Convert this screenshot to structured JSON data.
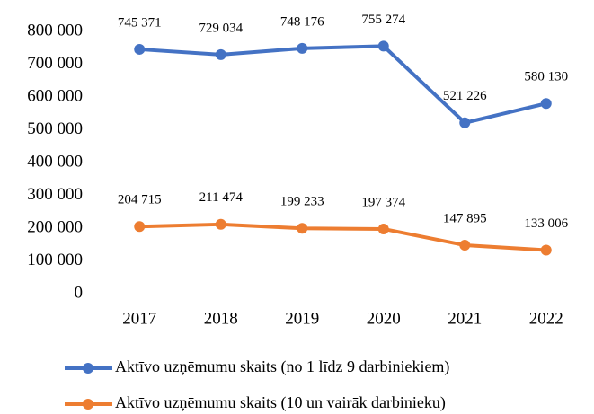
{
  "chart_data": {
    "type": "line",
    "categories": [
      "2017",
      "2018",
      "2019",
      "2020",
      "2021",
      "2022"
    ],
    "series": [
      {
        "name": "Aktīvo uzņēmumu skaits (no 1 līdz 9 darbiniekiem)",
        "color": "#4472c4",
        "values": [
          745371,
          729034,
          748176,
          755274,
          521226,
          580130
        ],
        "value_labels": [
          "745 371",
          "729 034",
          "748 176",
          "755 274",
          "521 226",
          "580 130"
        ]
      },
      {
        "name": "Aktīvo uzņēmumu skaits (10 un vairāk darbinieku)",
        "color": "#ed7d31",
        "values": [
          204715,
          211474,
          199233,
          197374,
          147895,
          133006
        ],
        "value_labels": [
          "204 715",
          "211 474",
          "199 233",
          "197 374",
          "147 895",
          "133 006"
        ]
      }
    ],
    "ylim": [
      0,
      800000
    ],
    "yticks": [
      0,
      {
        "value": 100000,
        "label": "100 000"
      },
      {
        "value": 200000,
        "label": "200 000"
      },
      {
        "value": 300000,
        "label": "300 000"
      },
      {
        "value": 400000,
        "label": "400 000"
      },
      {
        "value": 500000,
        "label": "500 000"
      },
      {
        "value": 600000,
        "label": "600 000"
      },
      {
        "value": 700000,
        "label": "700 000"
      },
      {
        "value": 800000,
        "label": "800 000"
      }
    ],
    "grid": false,
    "legend": "bottom"
  }
}
